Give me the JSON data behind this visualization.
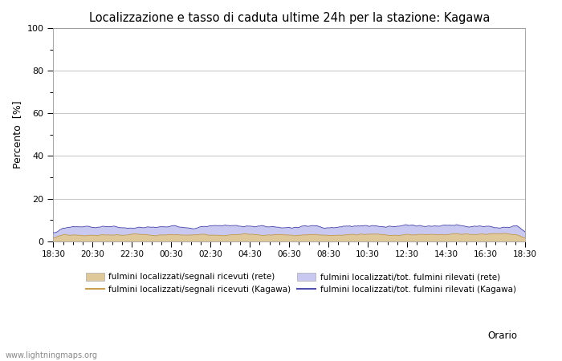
{
  "title": "Localizzazione e tasso di caduta ultime 24h per la stazione: Kagawa",
  "ylabel": "Percento  [%]",
  "xlabel": "Orario",
  "ylim": [
    0,
    100
  ],
  "yticks_major": [
    0,
    20,
    40,
    60,
    80,
    100
  ],
  "yticks_minor": [
    10,
    30,
    50,
    70,
    90
  ],
  "x_labels_major": [
    "18:30",
    "20:30",
    "22:30",
    "00:30",
    "02:30",
    "04:30",
    "06:30",
    "08:30",
    "10:30",
    "12:30",
    "14:30",
    "16:30",
    "18:30"
  ],
  "x_labels_major_pos": [
    0,
    2,
    4,
    6,
    8,
    10,
    12,
    14,
    16,
    18,
    20,
    22,
    24
  ],
  "num_points": 289,
  "fill_rete_color": "#dfc89a",
  "fill_kagawa_color": "#c8c8f0",
  "line_rete_color": "#c8a050",
  "line_kagawa_color": "#5050b0",
  "background_color": "#ffffff",
  "grid_color": "#c8c8c8",
  "watermark": "www.lightningmaps.org",
  "legend_labels": [
    "fulmini localizzati/segnali ricevuti (rete)",
    "fulmini localizzati/segnali ricevuti (Kagawa)",
    "fulmini localizzati/tot. fulmini rilevati (rete)",
    "fulmini localizzati/tot. fulmini rilevati (Kagawa)"
  ]
}
